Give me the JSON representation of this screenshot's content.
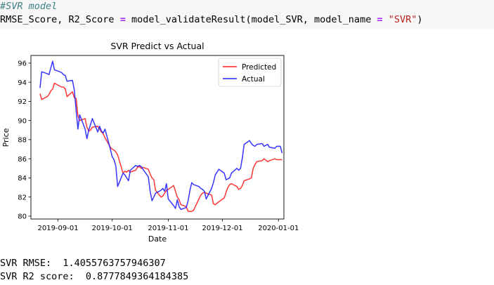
{
  "code": {
    "line1": "#SVR model",
    "line2": {
      "a": "RMSE_Score, R2_Score ",
      "eq1": "=",
      "b": " model_validateResult(model_SVR, model_name ",
      "eq2": "=",
      "c": " ",
      "str": "\"SVR\"",
      "d": ")"
    }
  },
  "output": {
    "rmse_line": "SVR RMSE:  1.4055763757946307",
    "r2_line": "SVR R2 score:  0.8777849364184385"
  },
  "colors": {
    "predicted": "#ff2020",
    "actual": "#2020ff",
    "axes": "#000000"
  },
  "chart_data": {
    "type": "line",
    "title": "SVR Predict vs Actual",
    "xlabel": "Date",
    "ylabel": "Price",
    "x_range": [
      "2019-08-17",
      "2020-01-04"
    ],
    "ylim": [
      79.7,
      96.8
    ],
    "x_ticks": [
      "2019-09-01",
      "2019-10-01",
      "2019-11-01",
      "2019-12-01",
      "2020-01-01"
    ],
    "y_ticks": [
      80,
      82,
      84,
      86,
      88,
      90,
      92,
      94,
      96
    ],
    "legend": "upper right",
    "grid": false,
    "series": [
      {
        "name": "Predicted",
        "color": "#ff2020",
        "points": [
          [
            "2019-08-22",
            92.8
          ],
          [
            "2019-08-23",
            92.2
          ],
          [
            "2019-08-26",
            92.5
          ],
          [
            "2019-08-27",
            92.7
          ],
          [
            "2019-08-28",
            93.1
          ],
          [
            "2019-08-29",
            93.3
          ],
          [
            "2019-08-30",
            93.9
          ],
          [
            "2019-09-02",
            93.6
          ],
          [
            "2019-09-03",
            93.5
          ],
          [
            "2019-09-04",
            93.5
          ],
          [
            "2019-09-05",
            93.3
          ],
          [
            "2019-09-06",
            92.5
          ],
          [
            "2019-09-09",
            93.0
          ],
          [
            "2019-09-10",
            92.4
          ],
          [
            "2019-09-11",
            92.3
          ],
          [
            "2019-09-12",
            90.5
          ],
          [
            "2019-09-13",
            90.0
          ],
          [
            "2019-09-16",
            90.2
          ],
          [
            "2019-09-17",
            89.3
          ],
          [
            "2019-09-18",
            88.9
          ],
          [
            "2019-09-19",
            89.0
          ],
          [
            "2019-09-20",
            89.3
          ],
          [
            "2019-09-23",
            89.4
          ],
          [
            "2019-09-24",
            89.1
          ],
          [
            "2019-09-25",
            88.8
          ],
          [
            "2019-09-26",
            88.6
          ],
          [
            "2019-09-27",
            88.2
          ],
          [
            "2019-09-30",
            87.2
          ],
          [
            "2019-10-01",
            87.0
          ],
          [
            "2019-10-02",
            86.9
          ],
          [
            "2019-10-03",
            86.7
          ],
          [
            "2019-10-04",
            86.4
          ],
          [
            "2019-10-07",
            84.5
          ],
          [
            "2019-10-08",
            84.7
          ],
          [
            "2019-10-09",
            84.6
          ],
          [
            "2019-10-10",
            84.8
          ],
          [
            "2019-10-11",
            84.6
          ],
          [
            "2019-10-14",
            84.8
          ],
          [
            "2019-10-15",
            85.1
          ],
          [
            "2019-10-16",
            85.2
          ],
          [
            "2019-10-17",
            85.0
          ],
          [
            "2019-10-18",
            85.1
          ],
          [
            "2019-10-21",
            84.9
          ],
          [
            "2019-10-22",
            84.4
          ],
          [
            "2019-10-23",
            84.0
          ],
          [
            "2019-10-24",
            83.8
          ],
          [
            "2019-10-25",
            82.7
          ],
          [
            "2019-10-28",
            82.0
          ],
          [
            "2019-10-29",
            82.1
          ],
          [
            "2019-10-30",
            82.4
          ],
          [
            "2019-10-31",
            82.7
          ],
          [
            "2019-11-01",
            82.8
          ],
          [
            "2019-11-04",
            83.2
          ],
          [
            "2019-11-05",
            82.6
          ],
          [
            "2019-11-06",
            82.0
          ],
          [
            "2019-11-07",
            81.7
          ],
          [
            "2019-11-08",
            81.2
          ],
          [
            "2019-11-11",
            81.0
          ],
          [
            "2019-11-12",
            80.5
          ],
          [
            "2019-11-13",
            80.5
          ],
          [
            "2019-11-14",
            80.5
          ],
          [
            "2019-11-15",
            80.6
          ],
          [
            "2019-11-18",
            81.8
          ],
          [
            "2019-11-19",
            82.2
          ],
          [
            "2019-11-20",
            82.4
          ],
          [
            "2019-11-21",
            82.5
          ],
          [
            "2019-11-22",
            82.4
          ],
          [
            "2019-11-25",
            82.2
          ],
          [
            "2019-11-26",
            81.3
          ],
          [
            "2019-11-27",
            81.2
          ],
          [
            "2019-11-29",
            81.5
          ],
          [
            "2019-12-02",
            81.9
          ],
          [
            "2019-12-03",
            82.5
          ],
          [
            "2019-12-04",
            83.0
          ],
          [
            "2019-12-05",
            83.3
          ],
          [
            "2019-12-06",
            83.4
          ],
          [
            "2019-12-09",
            83.1
          ],
          [
            "2019-12-10",
            82.8
          ],
          [
            "2019-12-11",
            82.9
          ],
          [
            "2019-12-12",
            83.2
          ],
          [
            "2019-12-13",
            83.7
          ],
          [
            "2019-12-16",
            83.9
          ],
          [
            "2019-12-17",
            84.0
          ],
          [
            "2019-12-18",
            85.0
          ],
          [
            "2019-12-19",
            85.4
          ],
          [
            "2019-12-20",
            85.7
          ],
          [
            "2019-12-23",
            85.8
          ],
          [
            "2019-12-24",
            86.0
          ],
          [
            "2019-12-26",
            85.7
          ],
          [
            "2019-12-27",
            85.8
          ],
          [
            "2019-12-30",
            86.0
          ],
          [
            "2019-12-31",
            85.9
          ],
          [
            "2020-01-02",
            85.9
          ],
          [
            "2020-01-03",
            85.9
          ]
        ]
      },
      {
        "name": "Actual",
        "color": "#2020ff",
        "points": [
          [
            "2019-08-22",
            93.4
          ],
          [
            "2019-08-23",
            95.1
          ],
          [
            "2019-08-26",
            94.9
          ],
          [
            "2019-08-27",
            94.8
          ],
          [
            "2019-08-28",
            95.5
          ],
          [
            "2019-08-29",
            96.2
          ],
          [
            "2019-08-30",
            95.3
          ],
          [
            "2019-09-02",
            95.1
          ],
          [
            "2019-09-03",
            95.0
          ],
          [
            "2019-09-04",
            94.8
          ],
          [
            "2019-09-05",
            94.7
          ],
          [
            "2019-09-06",
            94.1
          ],
          [
            "2019-09-09",
            94.2
          ],
          [
            "2019-09-10",
            93.2
          ],
          [
            "2019-09-11",
            91.1
          ],
          [
            "2019-09-12",
            89.1
          ],
          [
            "2019-09-13",
            90.6
          ],
          [
            "2019-09-16",
            89.1
          ],
          [
            "2019-09-17",
            88.1
          ],
          [
            "2019-09-18",
            89.0
          ],
          [
            "2019-09-19",
            89.6
          ],
          [
            "2019-09-20",
            90.2
          ],
          [
            "2019-09-23",
            88.8
          ],
          [
            "2019-09-24",
            89.4
          ],
          [
            "2019-09-25",
            88.9
          ],
          [
            "2019-09-26",
            88.7
          ],
          [
            "2019-09-27",
            89.1
          ],
          [
            "2019-09-30",
            87.0
          ],
          [
            "2019-10-01",
            86.2
          ],
          [
            "2019-10-02",
            85.9
          ],
          [
            "2019-10-03",
            85.2
          ],
          [
            "2019-10-04",
            83.1
          ],
          [
            "2019-10-07",
            84.5
          ],
          [
            "2019-10-08",
            84.3
          ],
          [
            "2019-10-09",
            84.0
          ],
          [
            "2019-10-10",
            83.7
          ],
          [
            "2019-10-11",
            84.8
          ],
          [
            "2019-10-14",
            85.3
          ],
          [
            "2019-10-15",
            85.2
          ],
          [
            "2019-10-16",
            85.3
          ],
          [
            "2019-10-17",
            85.2
          ],
          [
            "2019-10-18",
            84.9
          ],
          [
            "2019-10-21",
            84.1
          ],
          [
            "2019-10-22",
            82.6
          ],
          [
            "2019-10-23",
            81.6
          ],
          [
            "2019-10-24",
            82.0
          ],
          [
            "2019-10-25",
            82.4
          ],
          [
            "2019-10-28",
            82.7
          ],
          [
            "2019-10-29",
            82.9
          ],
          [
            "2019-10-30",
            82.6
          ],
          [
            "2019-10-31",
            83.4
          ],
          [
            "2019-11-01",
            81.8
          ],
          [
            "2019-11-04",
            81.1
          ],
          [
            "2019-11-05",
            80.8
          ],
          [
            "2019-11-06",
            81.7
          ],
          [
            "2019-11-07",
            81.0
          ],
          [
            "2019-11-08",
            80.7
          ],
          [
            "2019-11-11",
            80.9
          ],
          [
            "2019-11-12",
            81.6
          ],
          [
            "2019-11-13",
            82.7
          ],
          [
            "2019-11-14",
            83.5
          ],
          [
            "2019-11-15",
            83.3
          ],
          [
            "2019-11-18",
            83.1
          ],
          [
            "2019-11-19",
            82.9
          ],
          [
            "2019-11-20",
            82.8
          ],
          [
            "2019-11-21",
            82.6
          ],
          [
            "2019-11-22",
            81.8
          ],
          [
            "2019-11-25",
            82.9
          ],
          [
            "2019-11-26",
            83.5
          ],
          [
            "2019-11-27",
            84.3
          ],
          [
            "2019-11-29",
            84.9
          ],
          [
            "2019-12-02",
            84.5
          ],
          [
            "2019-12-03",
            83.8
          ],
          [
            "2019-12-04",
            83.9
          ],
          [
            "2019-12-05",
            84.0
          ],
          [
            "2019-12-06",
            84.5
          ],
          [
            "2019-12-09",
            85.0
          ],
          [
            "2019-12-10",
            84.8
          ],
          [
            "2019-12-11",
            85.0
          ],
          [
            "2019-12-12",
            86.1
          ],
          [
            "2019-12-13",
            87.5
          ],
          [
            "2019-12-16",
            87.9
          ],
          [
            "2019-12-17",
            87.6
          ],
          [
            "2019-12-18",
            87.4
          ],
          [
            "2019-12-19",
            87.3
          ],
          [
            "2019-12-20",
            87.5
          ],
          [
            "2019-12-23",
            87.6
          ],
          [
            "2019-12-24",
            87.3
          ],
          [
            "2019-12-26",
            87.5
          ],
          [
            "2019-12-27",
            87.2
          ],
          [
            "2019-12-30",
            87.1
          ],
          [
            "2019-12-31",
            87.3
          ],
          [
            "2020-01-02",
            87.3
          ],
          [
            "2020-01-03",
            86.6
          ]
        ]
      }
    ]
  }
}
